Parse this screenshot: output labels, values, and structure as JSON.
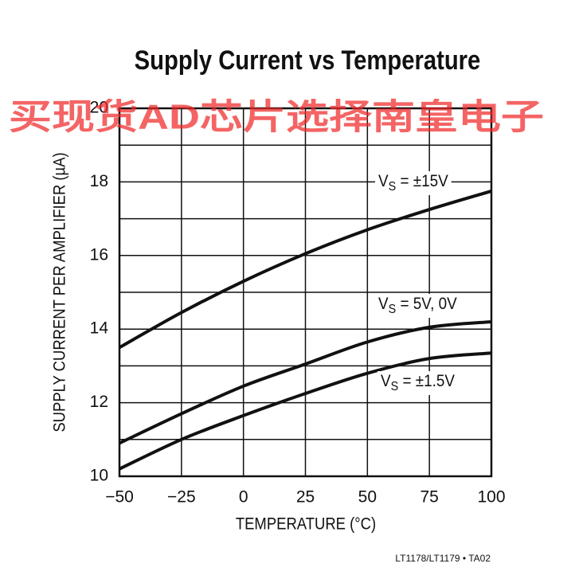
{
  "chart_data": {
    "type": "line",
    "title": "Supply Current vs Temperature",
    "watermark": "买现货AD芯片选择南皇电子",
    "x_label": "TEMPERATURE (°C)",
    "y_label": "SUPPLY CURRENT PER AMPLIFIER (µA)",
    "footnote": "LT1178/LT1179 • TA02",
    "x": [
      -50,
      -25,
      0,
      25,
      50,
      75,
      100
    ],
    "series": [
      {
        "name": "VS = ±15V",
        "color": "#111111",
        "values": [
          13.5,
          14.45,
          15.3,
          16.05,
          16.7,
          17.25,
          17.75
        ]
      },
      {
        "name": "VS = 5V, 0V",
        "color": "#111111",
        "values": [
          10.9,
          11.7,
          12.45,
          13.05,
          13.65,
          14.05,
          14.2
        ]
      },
      {
        "name": "VS = ±1.5V",
        "color": "#111111",
        "values": [
          10.2,
          11.0,
          11.65,
          12.25,
          12.8,
          13.2,
          13.35
        ]
      }
    ],
    "xlim": [
      -50,
      100
    ],
    "xticks": [
      {
        "value": -50,
        "label": "−50"
      },
      {
        "value": -25,
        "label": "−25"
      },
      0,
      25,
      50,
      75,
      100
    ],
    "ylim": [
      10,
      20
    ],
    "yticks": [
      10,
      12,
      14,
      16,
      18,
      20
    ],
    "minor_yticks": [
      11,
      13,
      15,
      17,
      19
    ],
    "grid": true
  }
}
